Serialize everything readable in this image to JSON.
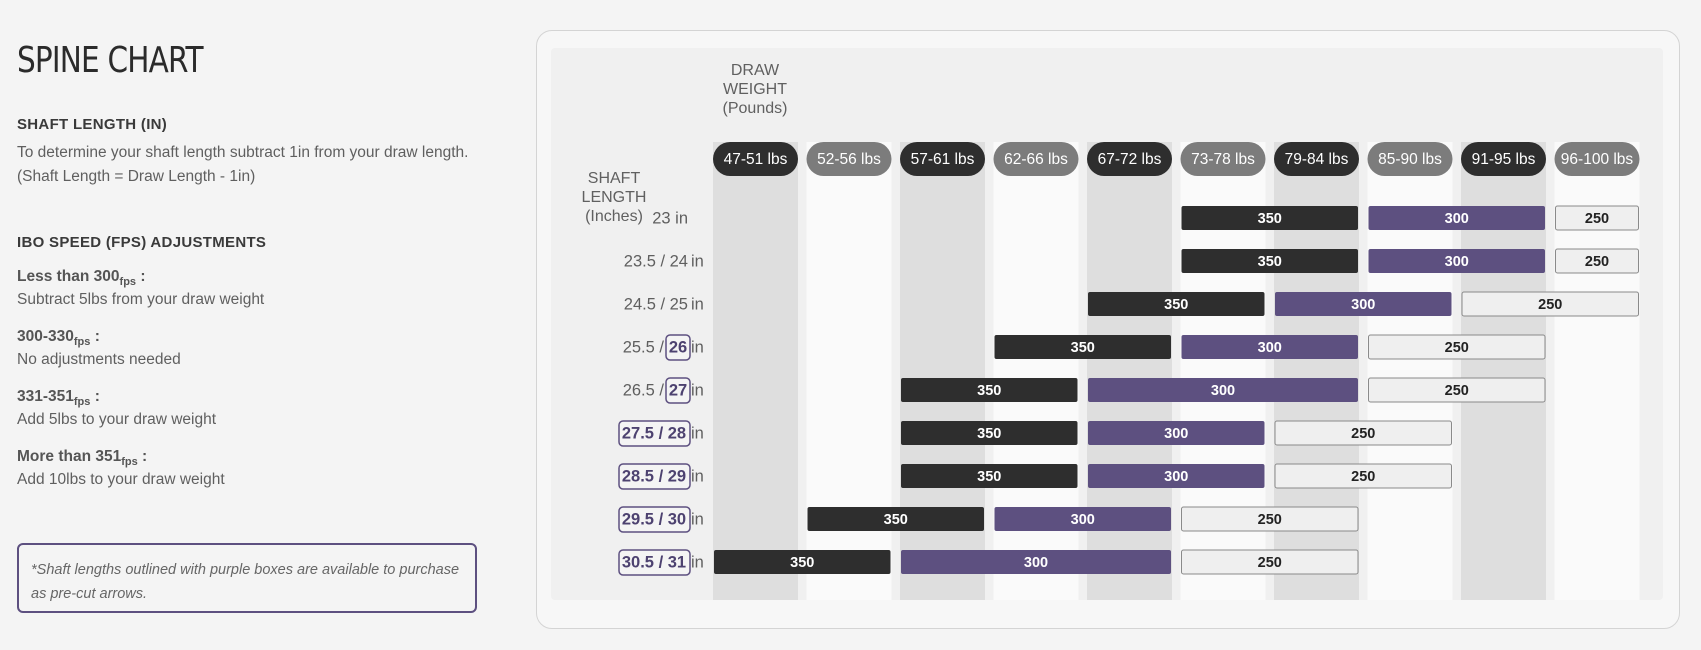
{
  "title": "SPINE CHART",
  "shaft_length": {
    "heading": "SHAFT LENGTH (IN)",
    "line1": "To determine your shaft length subtract 1in from your draw length.",
    "line2": "(Shaft Length = Draw Length - 1in)"
  },
  "ibo": {
    "heading": "IBO SPEED (FPS) ADJUSTMENTS",
    "items": [
      {
        "name": "Less than 300",
        "sub": "fps",
        "suffix": " :",
        "desc": "Subtract 5lbs from your draw weight"
      },
      {
        "name": "300-330",
        "sub": "fps",
        "suffix": " :",
        "desc": "No adjustments needed"
      },
      {
        "name": "331-351",
        "sub": "fps",
        "suffix": " :",
        "desc": "Add 5lbs to your draw weight"
      },
      {
        "name": "More than 351",
        "sub": "fps",
        "suffix": " :",
        "desc": "Add 10lbs to your draw weight"
      }
    ]
  },
  "note": "*Shaft lengths outlined with purple boxes are available to purchase as pre-cut arrows.",
  "colors": {
    "dark": "#2e2e2e",
    "purple": "#5d5080",
    "light": "#efefef",
    "gray_header": "#7c7c7c",
    "col_shade": "#dedede",
    "col_light": "#fafafa"
  },
  "chart_data": {
    "type": "table",
    "draw_weight_title": [
      "DRAW",
      "WEIGHT",
      "(Pounds)"
    ],
    "shaft_length_title": [
      "SHAFT",
      "LENGTH",
      "(Inches)"
    ],
    "columns": [
      "47-51 lbs",
      "52-56 lbs",
      "57-61 lbs",
      "62-66 lbs",
      "67-72 lbs",
      "73-78 lbs",
      "79-84 lbs",
      "85-90 lbs",
      "91-95 lbs",
      "96-100 lbs"
    ],
    "unit": "in",
    "rows": [
      {
        "label": "23",
        "boxed": false,
        "segments": [
          {
            "spine": "350",
            "from": 5,
            "to": 6
          },
          {
            "spine": "300",
            "from": 7,
            "to": 8
          },
          {
            "spine": "250",
            "from": 9,
            "to": 9
          }
        ]
      },
      {
        "label_a": "23.5",
        "label_b": "24",
        "boxed": "none",
        "segments": [
          {
            "spine": "350",
            "from": 5,
            "to": 6
          },
          {
            "spine": "300",
            "from": 7,
            "to": 8
          },
          {
            "spine": "250",
            "from": 9,
            "to": 9
          }
        ]
      },
      {
        "label_a": "24.5",
        "label_b": "25",
        "boxed": "none",
        "segments": [
          {
            "spine": "350",
            "from": 4,
            "to": 5
          },
          {
            "spine": "300",
            "from": 6,
            "to": 7
          },
          {
            "spine": "250",
            "from": 8,
            "to": 9
          }
        ]
      },
      {
        "label_a": "25.5",
        "label_b": "26",
        "boxed": "b",
        "segments": [
          {
            "spine": "350",
            "from": 3,
            "to": 4
          },
          {
            "spine": "300",
            "from": 5,
            "to": 6
          },
          {
            "spine": "250",
            "from": 7,
            "to": 8
          }
        ]
      },
      {
        "label_a": "26.5",
        "label_b": "27",
        "boxed": "b",
        "segments": [
          {
            "spine": "350",
            "from": 2,
            "to": 3
          },
          {
            "spine": "300",
            "from": 4,
            "to": 6
          },
          {
            "spine": "250",
            "from": 7,
            "to": 8
          }
        ]
      },
      {
        "label_a": "27.5",
        "label_b": "28",
        "boxed": "both",
        "segments": [
          {
            "spine": "350",
            "from": 2,
            "to": 3
          },
          {
            "spine": "300",
            "from": 4,
            "to": 5
          },
          {
            "spine": "250",
            "from": 6,
            "to": 7
          }
        ]
      },
      {
        "label_a": "28.5",
        "label_b": "29",
        "boxed": "both",
        "segments": [
          {
            "spine": "350",
            "from": 2,
            "to": 3
          },
          {
            "spine": "300",
            "from": 4,
            "to": 5
          },
          {
            "spine": "250",
            "from": 6,
            "to": 7
          }
        ]
      },
      {
        "label_a": "29.5",
        "label_b": "30",
        "boxed": "both",
        "segments": [
          {
            "spine": "350",
            "from": 1,
            "to": 2
          },
          {
            "spine": "300",
            "from": 3,
            "to": 4
          },
          {
            "spine": "250",
            "from": 5,
            "to": 6
          }
        ]
      },
      {
        "label_a": "30.5",
        "label_b": "31",
        "boxed": "both",
        "segments": [
          {
            "spine": "350",
            "from": 0,
            "to": 1
          },
          {
            "spine": "300",
            "from": 2,
            "to": 4
          },
          {
            "spine": "250",
            "from": 5,
            "to": 6
          }
        ]
      }
    ]
  }
}
